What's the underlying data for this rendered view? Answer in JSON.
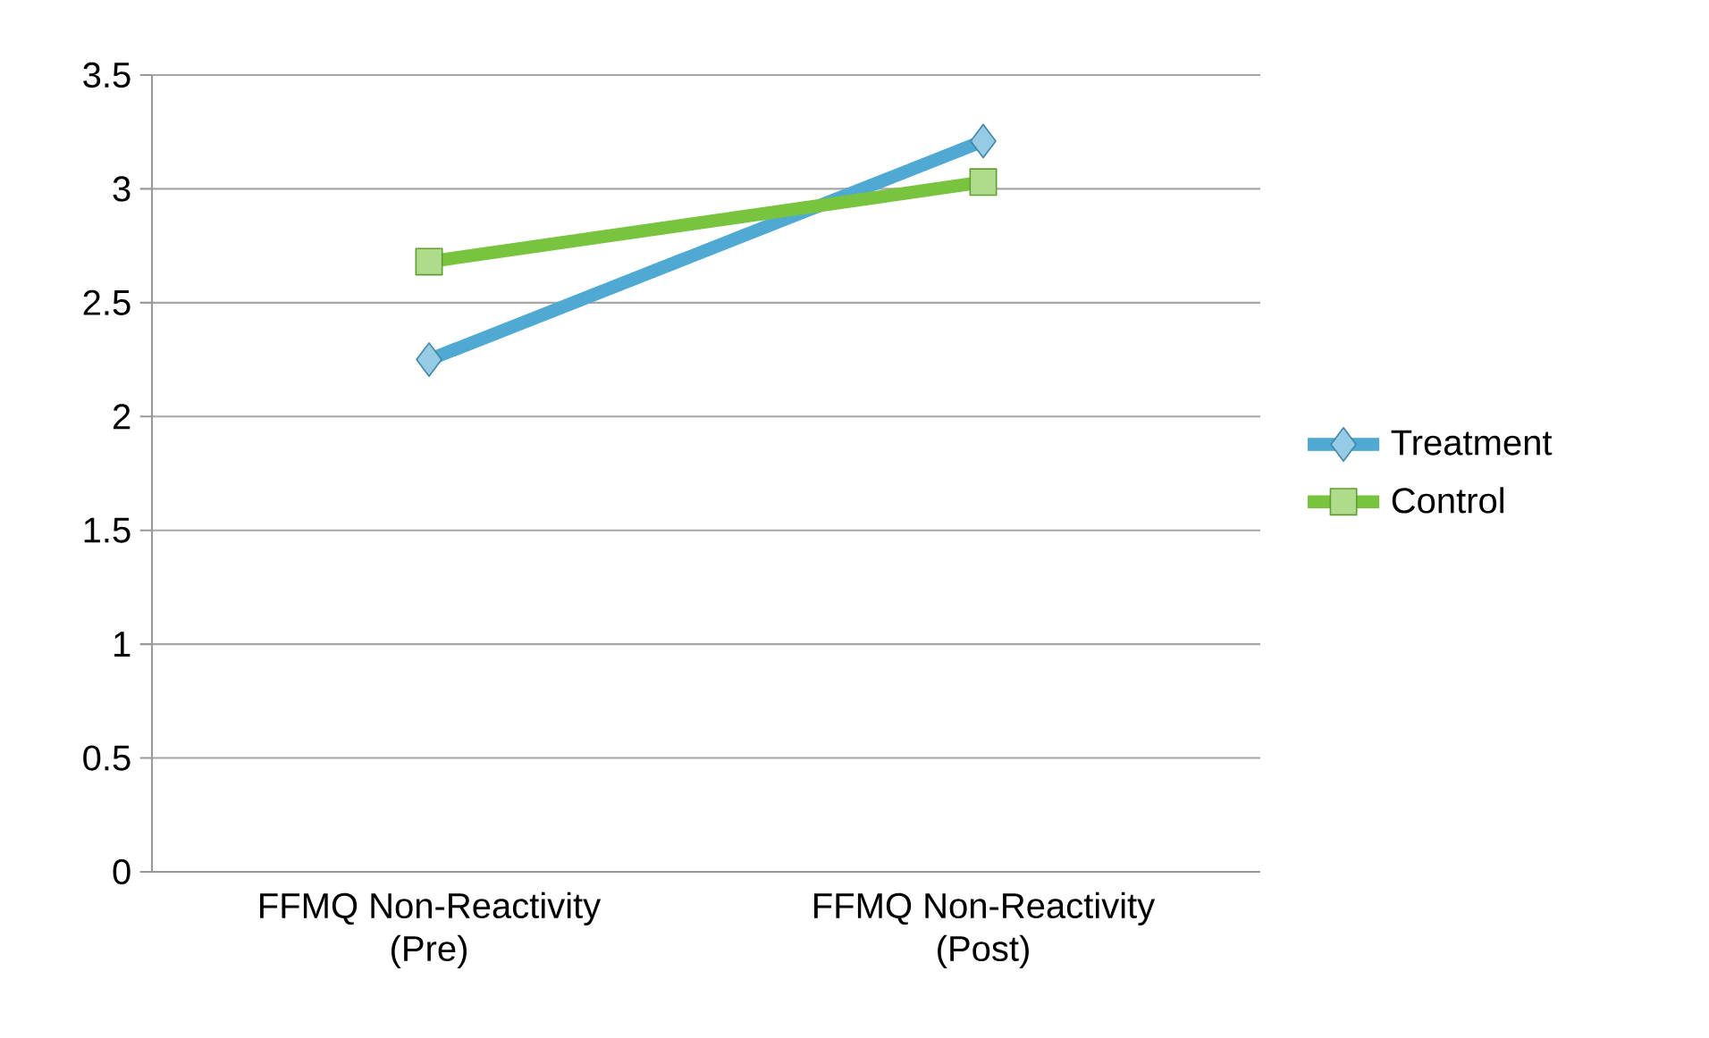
{
  "chart_data": {
    "type": "line",
    "categories": [
      "FFMQ Non-Reactivity\n(Pre)",
      "FFMQ Non-Reactivity\n(Post)"
    ],
    "series": [
      {
        "name": "Treatment",
        "color": "#4fa9d3",
        "marker": "diamond",
        "values": [
          2.25,
          3.21
        ]
      },
      {
        "name": "Control",
        "color": "#78c43e",
        "marker": "square",
        "values": [
          2.68,
          3.03
        ]
      }
    ],
    "ylim": [
      0,
      3.5
    ],
    "yticks": [
      0,
      0.5,
      1,
      1.5,
      2,
      2.5,
      3,
      3.5
    ],
    "grid": "y",
    "legend": "right"
  }
}
